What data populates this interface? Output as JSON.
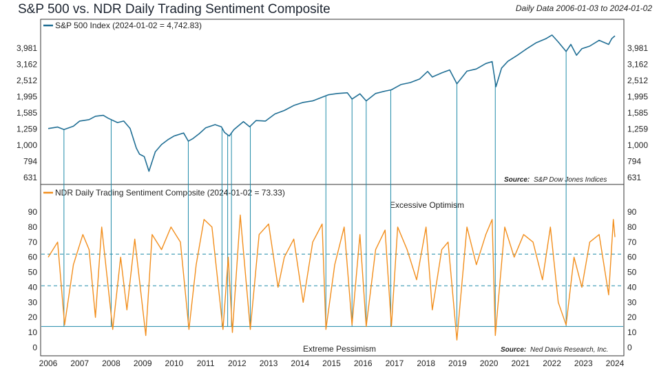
{
  "title": "S&P 500 vs. NDR Daily Trading Sentiment Composite",
  "subtitle": "Daily Data 2006-01-03 to 2024-01-02",
  "chart_data": [
    {
      "type": "line",
      "series": [
        {
          "name": "S&P 500 Index (2024-01-02 = 4,742.83)",
          "color": "#1f6e94",
          "x": [
            2006.0,
            2006.3,
            2006.5,
            2006.8,
            2007.0,
            2007.3,
            2007.5,
            2007.75,
            2007.9,
            2008.2,
            2008.4,
            2008.6,
            2008.8,
            2008.9,
            2009.05,
            2009.2,
            2009.4,
            2009.6,
            2009.8,
            2010.0,
            2010.3,
            2010.45,
            2010.6,
            2010.8,
            2011.0,
            2011.3,
            2011.5,
            2011.6,
            2011.75,
            2011.9,
            2012.2,
            2012.4,
            2012.6,
            2012.9,
            2013.2,
            2013.5,
            2013.8,
            2014.1,
            2014.4,
            2014.7,
            2014.9,
            2015.2,
            2015.5,
            2015.65,
            2015.9,
            2016.1,
            2016.4,
            2016.7,
            2016.9,
            2017.2,
            2017.5,
            2017.8,
            2018.05,
            2018.2,
            2018.5,
            2018.75,
            2018.98,
            2019.3,
            2019.6,
            2019.9,
            2020.1,
            2020.22,
            2020.4,
            2020.6,
            2020.9,
            2021.2,
            2021.5,
            2021.8,
            2022.0,
            2022.2,
            2022.45,
            2022.6,
            2022.78,
            2022.95,
            2023.2,
            2023.5,
            2023.8,
            2023.9,
            2024.0
          ],
          "y": [
            1268,
            1295,
            1250,
            1310,
            1410,
            1440,
            1510,
            1530,
            1470,
            1380,
            1410,
            1270,
            960,
            880,
            850,
            690,
            910,
            1010,
            1080,
            1140,
            1190,
            1060,
            1100,
            1180,
            1280,
            1340,
            1300,
            1200,
            1140,
            1250,
            1400,
            1300,
            1420,
            1410,
            1560,
            1640,
            1760,
            1840,
            1880,
            1980,
            2050,
            2090,
            2110,
            1930,
            2080,
            1880,
            2090,
            2160,
            2200,
            2370,
            2440,
            2570,
            2860,
            2640,
            2800,
            2920,
            2400,
            2870,
            2960,
            3200,
            3290,
            2300,
            3000,
            3300,
            3600,
            3950,
            4300,
            4550,
            4800,
            4350,
            3800,
            4200,
            3600,
            3950,
            4100,
            4450,
            4200,
            4560,
            4742.83
          ],
          "ticks": [
            "3,981",
            "3,162",
            "2,512",
            "1,995",
            "1,585",
            "1,259",
            "1,000",
            "794",
            "631"
          ]
        },
        {
          "name": "NDR Daily Trading Sentiment Composite (2024-01-02 = 73.33)",
          "color": "#f28e1c",
          "x": [
            2006.0,
            2006.3,
            2006.52,
            2006.8,
            2007.1,
            2007.3,
            2007.5,
            2007.7,
            2008.05,
            2008.3,
            2008.5,
            2008.75,
            2009.1,
            2009.3,
            2009.6,
            2009.9,
            2010.2,
            2010.47,
            2010.7,
            2010.95,
            2011.2,
            2011.55,
            2011.72,
            2011.85,
            2012.1,
            2012.42,
            2012.7,
            2013.0,
            2013.3,
            2013.5,
            2013.8,
            2014.1,
            2014.4,
            2014.7,
            2014.82,
            2015.1,
            2015.4,
            2015.65,
            2015.9,
            2016.1,
            2016.4,
            2016.7,
            2016.9,
            2017.1,
            2017.4,
            2017.7,
            2018.0,
            2018.2,
            2018.5,
            2018.7,
            2018.98,
            2019.3,
            2019.6,
            2019.9,
            2020.1,
            2020.2,
            2020.5,
            2020.8,
            2021.1,
            2021.4,
            2021.7,
            2021.95,
            2022.2,
            2022.45,
            2022.7,
            2022.95,
            2023.2,
            2023.5,
            2023.8,
            2023.95,
            2024.0
          ],
          "y": [
            60,
            70,
            15,
            55,
            75,
            65,
            20,
            80,
            12,
            60,
            25,
            72,
            8,
            75,
            65,
            80,
            70,
            12,
            55,
            85,
            80,
            12,
            60,
            10,
            88,
            12,
            75,
            82,
            40,
            60,
            72,
            30,
            70,
            82,
            12,
            55,
            80,
            15,
            75,
            14,
            65,
            78,
            14,
            80,
            65,
            45,
            80,
            25,
            65,
            70,
            5,
            80,
            55,
            75,
            85,
            8,
            80,
            60,
            75,
            70,
            45,
            80,
            30,
            15,
            60,
            40,
            70,
            75,
            35,
            85,
            73.33
          ],
          "ticks": [
            "90",
            "80",
            "70",
            "60",
            "50",
            "40",
            "30",
            "20",
            "10",
            "0"
          ],
          "reference_lines": [
            62,
            41,
            14
          ]
        }
      ],
      "x_ticks": [
        "2006",
        "2007",
        "2008",
        "2009",
        "2010",
        "2011",
        "2012",
        "2013",
        "2014",
        "2015",
        "2016",
        "2017",
        "2018",
        "2019",
        "2020",
        "2021",
        "2022",
        "2023",
        "2024"
      ],
      "signal_dates": [
        2006.5,
        2008.0,
        2010.45,
        2011.52,
        2011.7,
        2011.82,
        2012.42,
        2014.82,
        2015.65,
        2016.1,
        2016.88,
        2018.98,
        2020.2,
        2022.45
      ],
      "annotations": [
        "Excessive Optimism",
        "Extreme Pessimism"
      ],
      "sources": [
        {
          "label": "Source:",
          "text": "S&P Dow Jones Indices"
        },
        {
          "label": "Source:",
          "text": "Ned Davis Research, Inc."
        }
      ]
    }
  ]
}
